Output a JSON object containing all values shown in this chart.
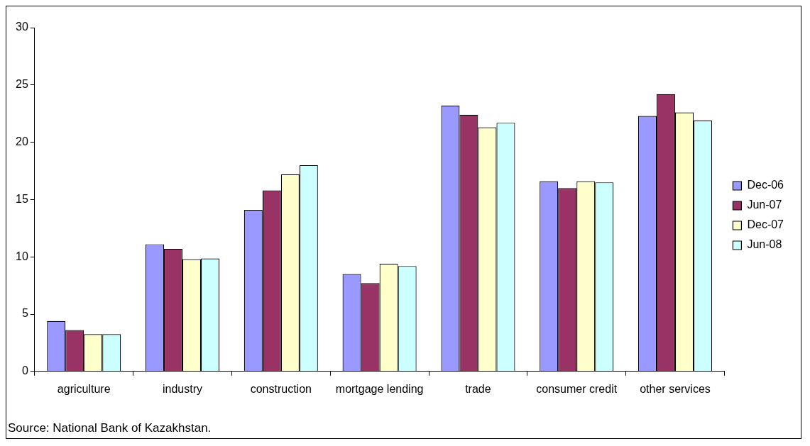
{
  "chart_data": {
    "type": "bar",
    "categories": [
      "agriculture",
      "industry",
      "construction",
      "mortgage lending",
      "trade",
      "consumer credit",
      "other services"
    ],
    "series": [
      {
        "name": "Dec-06",
        "color": "#9999ff",
        "values": [
          4.4,
          11.1,
          14.1,
          8.5,
          23.2,
          16.6,
          22.3
        ]
      },
      {
        "name": "Jun-07",
        "color": "#993366",
        "values": [
          3.6,
          10.7,
          15.8,
          7.7,
          22.4,
          16.0,
          24.2
        ]
      },
      {
        "name": "Dec-07",
        "color": "#ffffcc",
        "values": [
          3.25,
          9.8,
          17.2,
          9.4,
          21.3,
          16.6,
          22.6
        ]
      },
      {
        "name": "Jun-08",
        "color": "#ccffff",
        "values": [
          3.25,
          9.85,
          18.0,
          9.2,
          21.7,
          16.5,
          21.9
        ]
      }
    ],
    "ylim": [
      0,
      30
    ],
    "yticks": [
      0,
      5,
      10,
      15,
      20,
      25,
      30
    ],
    "grid": false,
    "legend": "right",
    "annotations": [
      "Source: National Bank of Kazakhstan."
    ]
  }
}
